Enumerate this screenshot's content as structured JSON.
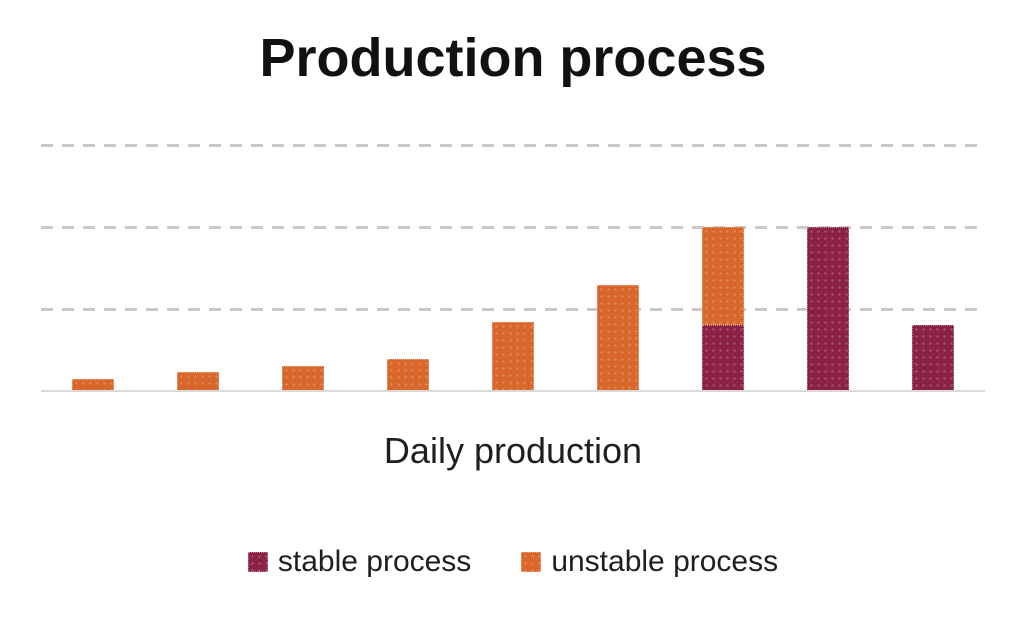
{
  "chart_data": {
    "type": "bar",
    "stacked": true,
    "title": "Production process",
    "xlabel": "Daily production",
    "bar_count": 9,
    "category_labels_visible": false,
    "series": [
      {
        "name": "stable process",
        "color": "#8B2144",
        "values": [
          0,
          0,
          0,
          0,
          0,
          0,
          0.8,
          2.0,
          0.8
        ]
      },
      {
        "name": "unstable process",
        "color": "#D9662B",
        "values": [
          0.15,
          0.23,
          0.31,
          0.39,
          0.84,
          1.29,
          1.2,
          0,
          0
        ]
      }
    ],
    "ylim": [
      0,
      3.3
    ],
    "y_axis_labels_visible": false,
    "gridline_values": [
      1,
      2,
      3
    ],
    "grid_style": "dashed",
    "gridline_color": "#C9C9C9",
    "axis_line_color": "#D9D9D9",
    "title_color": "#111111",
    "text_color": "#1F1F1F",
    "background_color": "#FFFFFF",
    "legend_position": "bottom"
  }
}
